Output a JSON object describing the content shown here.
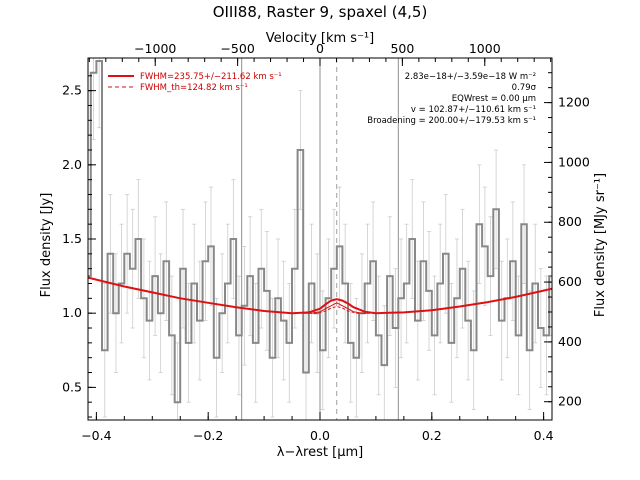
{
  "chart_data": {
    "type": "line",
    "title": "OIII88, Raster 9, spaxel (4,5)",
    "xlabel": "λ−λrest [μm]",
    "ylabel": "Flux density [Jy]",
    "top_xlabel": "Velocity [km s⁻¹]",
    "right_ylabel": "Flux density [MJy sr⁻¹]",
    "xlim": [
      -0.415,
      0.415
    ],
    "ylim": [
      0.28,
      2.72
    ],
    "x_ticks": [
      -0.4,
      -0.2,
      0.0,
      0.2,
      0.4
    ],
    "x_tick_labels": [
      "−0.4",
      "−0.2",
      "0.0",
      "0.2",
      "0.4"
    ],
    "y_ticks": [
      0.5,
      1.0,
      1.5,
      2.0,
      2.5
    ],
    "y_tick_labels": [
      "0.5",
      "1.0",
      "1.5",
      "2.0",
      "2.5"
    ],
    "top_ticks_velocity": [
      -1000,
      -500,
      0,
      500,
      1000
    ],
    "top_tick_labels": [
      "−1000",
      "−500",
      "0",
      "500",
      "1000"
    ],
    "right_ticks_mjy": [
      200,
      400,
      600,
      800,
      1000,
      1200
    ],
    "right_tick_labels": [
      "200",
      "400",
      "600",
      "800",
      "1000",
      "1200"
    ],
    "vertical_lines_solid": [
      -0.14,
      0.0,
      0.14
    ],
    "vertical_line_dashed": 0.03,
    "legend": [
      {
        "label": "FWHM=235.75+/−211.62 km s⁻¹",
        "style": "solid",
        "color": "#dd1111"
      },
      {
        "label": "FWHM_th=124.82 km s⁻¹",
        "style": "dashed",
        "color": "#dd1111"
      }
    ],
    "annotations": [
      "2.83e−18+/−3.59e−18 W m⁻²",
      "0.79σ",
      "EQWrest = 0.00 μm",
      "v = 102.87+/−110.61 km s⁻¹",
      "Broadening = 200.00+/−179.53 km s⁻¹"
    ],
    "series": [
      {
        "style": "steps",
        "color": "#888888",
        "x": [
          -0.415,
          -0.405,
          -0.395,
          -0.385,
          -0.375,
          -0.365,
          -0.355,
          -0.345,
          -0.335,
          -0.325,
          -0.315,
          -0.305,
          -0.295,
          -0.285,
          -0.275,
          -0.265,
          -0.255,
          -0.245,
          -0.235,
          -0.225,
          -0.215,
          -0.205,
          -0.195,
          -0.185,
          -0.175,
          -0.165,
          -0.155,
          -0.145,
          -0.135,
          -0.125,
          -0.115,
          -0.105,
          -0.095,
          -0.085,
          -0.075,
          -0.065,
          -0.055,
          -0.045,
          -0.035,
          -0.025,
          -0.015,
          -0.005,
          0.005,
          0.015,
          0.025,
          0.035,
          0.045,
          0.055,
          0.065,
          0.075,
          0.085,
          0.095,
          0.105,
          0.115,
          0.125,
          0.135,
          0.145,
          0.155,
          0.165,
          0.175,
          0.185,
          0.195,
          0.205,
          0.215,
          0.225,
          0.235,
          0.245,
          0.255,
          0.265,
          0.275,
          0.285,
          0.295,
          0.305,
          0.315,
          0.325,
          0.335,
          0.345,
          0.355,
          0.365,
          0.375,
          0.385,
          0.395,
          0.405,
          0.415
        ],
        "y": [
          1.25,
          2.62,
          2.7,
          0.75,
          1.4,
          1.0,
          1.2,
          1.4,
          1.3,
          1.5,
          1.1,
          0.95,
          1.25,
          1.0,
          1.35,
          0.85,
          0.4,
          1.3,
          0.8,
          1.2,
          0.95,
          1.35,
          1.45,
          0.7,
          1.0,
          1.2,
          1.5,
          0.85,
          1.05,
          1.25,
          0.8,
          1.3,
          1.15,
          0.7,
          1.1,
          0.95,
          0.8,
          1.3,
          2.1,
          0.6,
          1.2,
          1.0,
          0.75,
          1.1,
          1.3,
          1.45,
          1.2,
          0.8,
          0.7,
          1.0,
          1.2,
          1.35,
          0.85,
          0.65,
          1.25,
          0.9,
          1.1,
          1.2,
          1.5,
          0.95,
          1.35,
          1.15,
          0.85,
          1.2,
          1.4,
          0.8,
          1.1,
          1.3,
          0.95,
          0.75,
          1.6,
          1.45,
          1.25,
          1.7,
          0.95,
          1.1,
          1.35,
          0.85,
          1.6,
          0.75,
          1.2,
          0.9,
          0.85,
          1.25
        ],
        "err": [
          0.45,
          0.45,
          0.45,
          0.45,
          0.4,
          0.4,
          0.4,
          0.4,
          0.4,
          0.4,
          0.4,
          0.4,
          0.4,
          0.4,
          0.4,
          0.4,
          0.4,
          0.4,
          0.4,
          0.4,
          0.4,
          0.4,
          0.4,
          0.4,
          0.4,
          0.4,
          0.4,
          0.4,
          0.4,
          0.4,
          0.4,
          0.4,
          0.4,
          0.4,
          0.4,
          0.4,
          0.4,
          0.4,
          0.4,
          0.4,
          0.4,
          0.4,
          0.4,
          0.4,
          0.4,
          0.4,
          0.4,
          0.4,
          0.4,
          0.4,
          0.4,
          0.4,
          0.4,
          0.4,
          0.4,
          0.4,
          0.4,
          0.4,
          0.4,
          0.4,
          0.4,
          0.4,
          0.4,
          0.4,
          0.4,
          0.4,
          0.4,
          0.4,
          0.4,
          0.4,
          0.4,
          0.4,
          0.4,
          0.4,
          0.4,
          0.4,
          0.4,
          0.4,
          0.4,
          0.4,
          0.4,
          0.4,
          0.4,
          0.4
        ]
      },
      {
        "style": "solid",
        "color": "#dd1111",
        "x": [
          -0.415,
          -0.35,
          -0.3,
          -0.25,
          -0.2,
          -0.15,
          -0.1,
          -0.05,
          -0.02,
          0.0,
          0.01,
          0.02,
          0.03,
          0.04,
          0.05,
          0.06,
          0.08,
          0.1,
          0.15,
          0.2,
          0.25,
          0.3,
          0.35,
          0.415
        ],
        "y": [
          1.24,
          1.18,
          1.14,
          1.1,
          1.07,
          1.04,
          1.015,
          1.0,
          1.005,
          1.03,
          1.06,
          1.085,
          1.095,
          1.085,
          1.065,
          1.04,
          1.01,
          1.0,
          1.005,
          1.02,
          1.045,
          1.075,
          1.11,
          1.165
        ]
      },
      {
        "style": "solid-thin",
        "color": "#dd1111",
        "x": [
          -0.03,
          -0.015,
          0.0,
          0.015,
          0.03,
          0.045,
          0.06,
          0.075,
          0.09
        ],
        "y": [
          1.0,
          1.0,
          1.01,
          1.04,
          1.07,
          1.04,
          1.01,
          1.0,
          1.0
        ]
      },
      {
        "style": "dashed",
        "color": "#dd1111",
        "x": [
          -0.02,
          -0.005,
          0.01,
          0.02,
          0.03,
          0.04,
          0.05,
          0.065,
          0.08
        ],
        "y": [
          1.0,
          1.0,
          1.015,
          1.035,
          1.045,
          1.035,
          1.015,
          1.0,
          1.0
        ]
      }
    ]
  }
}
